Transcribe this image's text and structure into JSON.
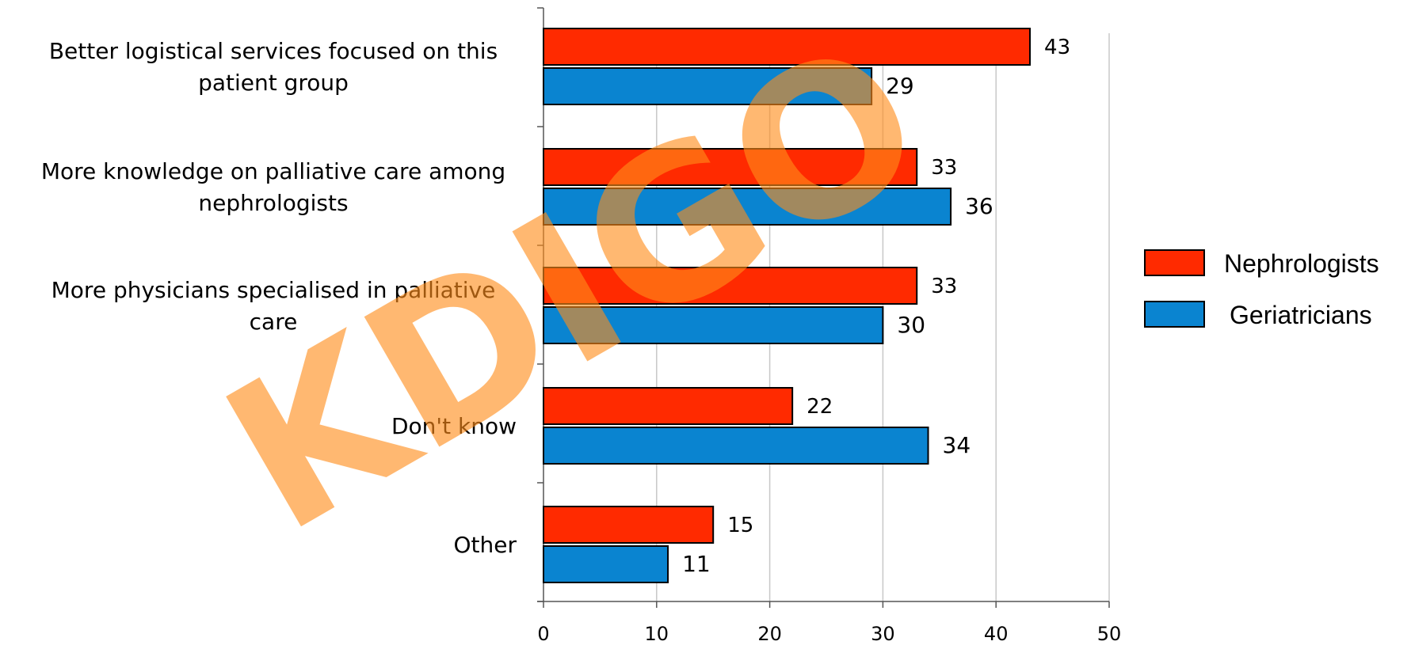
{
  "chart_data": {
    "type": "bar",
    "orientation": "horizontal",
    "categories": [
      "Better logistical services focused on this patient group",
      "More knowledge on palliative care among nephrologists",
      "More physicians specialised in palliative care",
      "Don't know",
      "Other"
    ],
    "series": [
      {
        "name": "Nephrologists",
        "values": [
          43,
          33,
          33,
          22,
          15
        ],
        "color": "#ff2a00"
      },
      {
        "name": "Geriatricians",
        "values": [
          29,
          36,
          30,
          34,
          11
        ],
        "color": "#0a84d0"
      }
    ],
    "xlim": [
      0,
      50
    ],
    "x_ticks": [
      "0",
      "10",
      "20",
      "30",
      "40",
      "50"
    ],
    "grid": "vertical",
    "legend_position": "right",
    "title": "",
    "xlabel": "",
    "ylabel": ""
  },
  "watermark": {
    "text": "KDIGO",
    "color": "#ff8c1a"
  }
}
